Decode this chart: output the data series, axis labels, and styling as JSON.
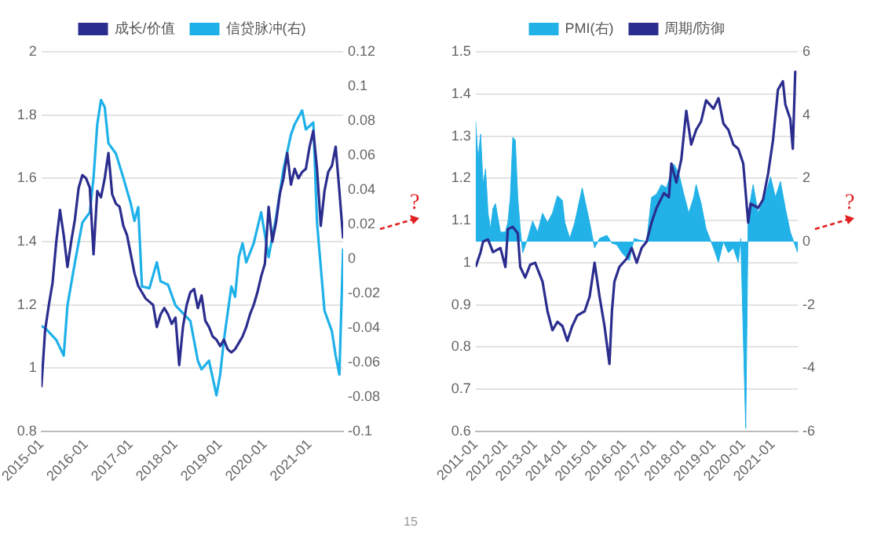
{
  "chart_data": [
    {
      "type": "line",
      "legend": "top",
      "grid": "y",
      "marker": "none",
      "xlim": [
        "2015-01",
        "2021-10"
      ],
      "xticks": [
        "2015-01",
        "2016-01",
        "2017-01",
        "2018-01",
        "2019-01",
        "2020-01",
        "2021-01"
      ],
      "ylim": [
        0.8,
        2
      ],
      "yticks": [
        0.8,
        1,
        1.2,
        1.4,
        1.6,
        1.8,
        2
      ],
      "y2lim": [
        -0.1,
        0.12
      ],
      "y2ticks": [
        -0.1,
        -0.08,
        -0.06,
        -0.04,
        -0.02,
        0,
        0.02,
        0.04,
        0.06,
        0.08,
        0.1,
        0.12
      ],
      "annotations": [
        "?"
      ],
      "series": [
        {
          "name": "成长/价值",
          "color": "#2b2d8e",
          "x": [
            "2015-01",
            "2015-02",
            "2015-03",
            "2015-04",
            "2015-05",
            "2015-06",
            "2015-07",
            "2015-08",
            "2015-09",
            "2015-10",
            "2015-11",
            "2015-12",
            "2016-01",
            "2016-02",
            "2016-03",
            "2016-04",
            "2016-05",
            "2016-06",
            "2016-07",
            "2016-08",
            "2016-09",
            "2016-10",
            "2016-11",
            "2016-12",
            "2017-01",
            "2017-02",
            "2017-03",
            "2017-04",
            "2017-05",
            "2017-06",
            "2017-07",
            "2017-08",
            "2017-09",
            "2017-10",
            "2017-11",
            "2017-12",
            "2018-01",
            "2018-02",
            "2018-03",
            "2018-04",
            "2018-05",
            "2018-06",
            "2018-07",
            "2018-08",
            "2018-09",
            "2018-10",
            "2018-11",
            "2018-12",
            "2019-01",
            "2019-02",
            "2019-03",
            "2019-04",
            "2019-05",
            "2019-06",
            "2019-07",
            "2019-08",
            "2019-09",
            "2019-10",
            "2019-11",
            "2019-12",
            "2020-01",
            "2020-02",
            "2020-03",
            "2020-04",
            "2020-05",
            "2020-06",
            "2020-07",
            "2020-08",
            "2020-09",
            "2020-10",
            "2020-11",
            "2020-12",
            "2021-01",
            "2021-02",
            "2021-03",
            "2021-04",
            "2021-05",
            "2021-06",
            "2021-07",
            "2021-08",
            "2021-09",
            "2021-10"
          ],
          "values": [
            0.94,
            1.12,
            1.2,
            1.27,
            1.4,
            1.5,
            1.42,
            1.32,
            1.4,
            1.47,
            1.57,
            1.61,
            1.6,
            1.57,
            1.36,
            1.56,
            1.54,
            1.6,
            1.68,
            1.55,
            1.52,
            1.51,
            1.45,
            1.42,
            1.36,
            1.3,
            1.26,
            1.24,
            1.22,
            1.21,
            1.2,
            1.13,
            1.17,
            1.19,
            1.17,
            1.14,
            1.16,
            1.01,
            1.13,
            1.2,
            1.24,
            1.25,
            1.19,
            1.23,
            1.15,
            1.13,
            1.1,
            1.09,
            1.07,
            1.09,
            1.06,
            1.05,
            1.06,
            1.08,
            1.1,
            1.13,
            1.17,
            1.2,
            1.24,
            1.29,
            1.33,
            1.51,
            1.4,
            1.46,
            1.55,
            1.6,
            1.68,
            1.58,
            1.63,
            1.6,
            1.62,
            1.63,
            1.7,
            1.75,
            1.63,
            1.45,
            1.56,
            1.62,
            1.64,
            1.7,
            1.56,
            1.41
          ]
        },
        {
          "name": "信贷脉冲(右)",
          "color": "#1eb1e9",
          "axis": "y2",
          "x": [
            "2015-01",
            "2015-02",
            "2015-05",
            "2015-07",
            "2015-08",
            "2015-10",
            "2015-12",
            "2016-02",
            "2016-03",
            "2016-04",
            "2016-05",
            "2016-06",
            "2016-07",
            "2016-09",
            "2016-11",
            "2017-01",
            "2017-02",
            "2017-03",
            "2017-04",
            "2017-06",
            "2017-08",
            "2017-09",
            "2017-11",
            "2018-01",
            "2018-05",
            "2018-07",
            "2018-08",
            "2018-10",
            "2018-12",
            "2019-01",
            "2019-02",
            "2019-04",
            "2019-05",
            "2019-06",
            "2019-07",
            "2019-08",
            "2019-10",
            "2019-12",
            "2020-02",
            "2020-04",
            "2020-06",
            "2020-08",
            "2020-09",
            "2020-11",
            "2020-12",
            "2021-02",
            "2021-03",
            "2021-05",
            "2021-07",
            "2021-08",
            "2021-09",
            "2021-10"
          ],
          "values": [
            -0.039,
            -0.04,
            -0.047,
            -0.056,
            -0.027,
            -0.002,
            0.021,
            0.027,
            0.047,
            0.078,
            0.092,
            0.088,
            0.067,
            0.061,
            0.047,
            0.032,
            0.022,
            0.03,
            -0.016,
            -0.017,
            -0.002,
            -0.013,
            -0.015,
            -0.027,
            -0.036,
            -0.059,
            -0.064,
            -0.059,
            -0.079,
            -0.067,
            -0.047,
            -0.016,
            -0.022,
            0.001,
            0.009,
            -0.002,
            0.009,
            0.027,
            0.001,
            0.024,
            0.052,
            0.072,
            0.078,
            0.086,
            0.075,
            0.079,
            0.021,
            -0.03,
            -0.042,
            -0.056,
            -0.067,
            0.006
          ]
        }
      ]
    },
    {
      "type": "line",
      "legend": "top",
      "grid": "y",
      "marker": "none",
      "xlim": [
        "2011-01",
        "2021-11"
      ],
      "xticks": [
        "2011-01",
        "2012-01",
        "2013-01",
        "2014-01",
        "2015-01",
        "2016-01",
        "2017-01",
        "2018-01",
        "2019-01",
        "2020-01",
        "2021-01"
      ],
      "ylim": [
        0.6,
        1.5
      ],
      "yticks": [
        0.6,
        0.7,
        0.8,
        0.9,
        1,
        1.1,
        1.2,
        1.3,
        1.4,
        1.5
      ],
      "y2lim": [
        -6,
        6
      ],
      "y2ticks": [
        -6,
        -4,
        -2,
        0,
        2,
        4,
        6
      ],
      "annotations": [
        "?",
        "15"
      ],
      "series": [
        {
          "name": "PMI(右)",
          "type": "area",
          "color": "#22b2e8",
          "axis": "y2",
          "x": [
            "2011-01",
            "2011-02",
            "2011-03",
            "2011-04",
            "2011-05",
            "2011-06",
            "2011-07",
            "2011-08",
            "2011-09",
            "2011-11",
            "2012-01",
            "2012-02",
            "2012-03",
            "2012-04",
            "2012-05",
            "2012-06",
            "2012-07",
            "2012-08",
            "2012-10",
            "2012-12",
            "2013-02",
            "2013-04",
            "2013-06",
            "2013-08",
            "2013-10",
            "2013-12",
            "2014-01",
            "2014-03",
            "2014-05",
            "2014-08",
            "2014-11",
            "2015-01",
            "2015-03",
            "2015-06",
            "2015-08",
            "2015-10",
            "2015-12",
            "2016-03",
            "2016-05",
            "2016-07",
            "2016-10",
            "2016-12",
            "2017-02",
            "2017-04",
            "2017-06",
            "2017-09",
            "2017-11",
            "2018-01",
            "2018-03",
            "2018-05",
            "2018-06",
            "2018-08",
            "2018-10",
            "2019-01",
            "2019-03",
            "2019-05",
            "2019-07",
            "2019-09",
            "2019-11",
            "2019-12",
            "2020-02",
            "2020-03",
            "2020-05",
            "2020-07",
            "2020-10",
            "2020-12",
            "2021-02",
            "2021-04",
            "2021-06",
            "2021-08",
            "2021-11"
          ],
          "values": [
            3.8,
            2.6,
            3.4,
            1.8,
            2.3,
            0.9,
            0.4,
            1.05,
            1.2,
            0.3,
            0.3,
            0.6,
            1.4,
            3.3,
            3.2,
            1.4,
            0.4,
            -0.35,
            0.1,
            0.65,
            0.3,
            0.9,
            0.6,
            0.9,
            1.45,
            1.3,
            0.6,
            0.1,
            0.6,
            1.7,
            0.6,
            -0.2,
            0.1,
            0.2,
            -0.05,
            -0.1,
            -0.35,
            -0.6,
            0.1,
            0.05,
            0,
            1.4,
            1.5,
            1.8,
            1.7,
            2.45,
            2.15,
            1.5,
            0.9,
            1.4,
            1.8,
            1.2,
            0.4,
            -0.2,
            -0.65,
            0,
            -0.35,
            -0.2,
            -0.65,
            0.1,
            -5.9,
            0.9,
            1.8,
            0.9,
            1.5,
            2.05,
            1.4,
            1.9,
            1.05,
            0.3,
            -0.35
          ]
        },
        {
          "name": "周期/防御",
          "color": "#2b2d8e",
          "x": [
            "2011-01",
            "2011-03",
            "2011-04",
            "2011-06",
            "2011-08",
            "2011-11",
            "2012-01",
            "2012-02",
            "2012-04",
            "2012-06",
            "2012-07",
            "2012-09",
            "2012-11",
            "2013-01",
            "2013-04",
            "2013-06",
            "2013-08",
            "2013-10",
            "2013-12",
            "2014-02",
            "2014-04",
            "2014-06",
            "2014-09",
            "2014-11",
            "2015-01",
            "2015-03",
            "2015-05",
            "2015-07",
            "2015-08",
            "2015-09",
            "2015-11",
            "2016-02",
            "2016-04",
            "2016-06",
            "2016-08",
            "2016-10",
            "2016-12",
            "2017-02",
            "2017-05",
            "2017-07",
            "2017-08",
            "2017-10",
            "2017-12",
            "2018-02",
            "2018-04",
            "2018-06",
            "2018-08",
            "2018-10",
            "2019-01",
            "2019-03",
            "2019-05",
            "2019-07",
            "2019-09",
            "2019-11",
            "2020-01",
            "2020-03",
            "2020-04",
            "2020-07",
            "2020-09",
            "2020-11",
            "2021-01",
            "2021-03",
            "2021-05",
            "2021-06",
            "2021-08",
            "2021-09",
            "2021-10"
          ],
          "values": [
            0.99,
            1.025,
            1.05,
            1.055,
            1.025,
            1.035,
            0.99,
            1.08,
            1.085,
            1.07,
            0.99,
            0.965,
            0.995,
            1,
            0.955,
            0.885,
            0.84,
            0.86,
            0.85,
            0.815,
            0.85,
            0.875,
            0.885,
            0.92,
            1,
            0.92,
            0.85,
            0.76,
            0.885,
            0.955,
            0.99,
            1.01,
            1.035,
            1,
            1.035,
            1.05,
            1.095,
            1.13,
            1.165,
            1.155,
            1.235,
            1.19,
            1.245,
            1.36,
            1.28,
            1.315,
            1.335,
            1.385,
            1.365,
            1.39,
            1.33,
            1.315,
            1.28,
            1.27,
            1.235,
            1.095,
            1.14,
            1.13,
            1.15,
            1.21,
            1.29,
            1.41,
            1.43,
            1.375,
            1.34,
            1.27,
            1.455
          ]
        }
      ]
    }
  ]
}
